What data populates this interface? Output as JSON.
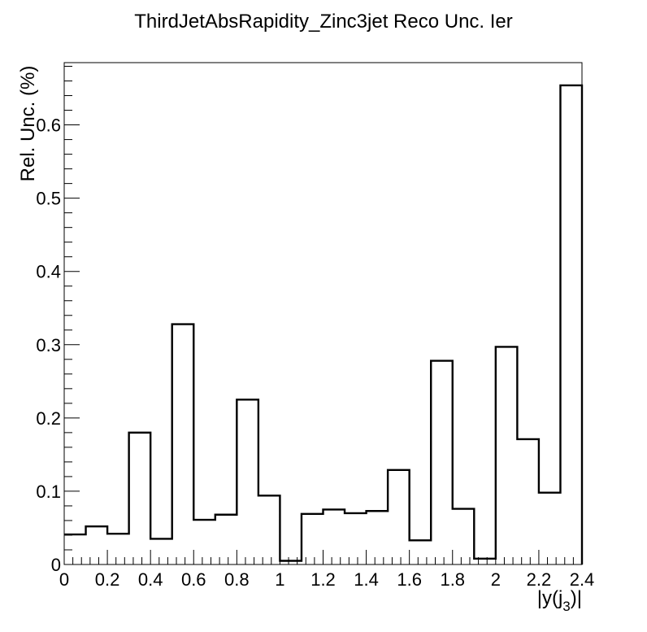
{
  "chart_data": {
    "type": "histogram",
    "title": "ThirdJetAbsRapidity_Zinc3jet Reco Unc. Ier",
    "xlabel": "|y(j",
    "xlabel_subscript": "3",
    "xlabel_suffix": ")|",
    "ylabel": "Rel. Unc. (%)",
    "xlim": [
      0,
      2.4
    ],
    "ylim": [
      0,
      0.685
    ],
    "grid": false,
    "x_ticks": [
      0,
      0.2,
      0.4,
      0.6,
      0.8,
      1.0,
      1.2,
      1.4,
      1.6,
      1.8,
      2.0,
      2.2,
      2.4
    ],
    "x_tick_labels": [
      "0",
      "0.2",
      "0.4",
      "0.6",
      "0.8",
      "1",
      "1.2",
      "1.4",
      "1.6",
      "1.8",
      "2",
      "2.2",
      "2.4"
    ],
    "y_ticks": [
      0,
      0.1,
      0.2,
      0.3,
      0.4,
      0.5,
      0.6
    ],
    "y_tick_labels": [
      "0",
      "0.1",
      "0.2",
      "0.3",
      "0.4",
      "0.5",
      "0.6"
    ],
    "bin_edges": [
      0,
      0.1,
      0.2,
      0.3,
      0.4,
      0.5,
      0.6,
      0.7,
      0.8,
      0.9,
      1.0,
      1.1,
      1.2,
      1.3,
      1.4,
      1.5,
      1.6,
      1.7,
      1.8,
      1.9,
      2.0,
      2.1,
      2.2,
      2.3,
      2.4
    ],
    "values": [
      0.041,
      0.052,
      0.042,
      0.18,
      0.035,
      0.328,
      0.061,
      0.068,
      0.225,
      0.094,
      0.005,
      0.069,
      0.075,
      0.07,
      0.073,
      0.129,
      0.033,
      0.278,
      0.076,
      0.008,
      0.297,
      0.171,
      0.098,
      0.654
    ],
    "line_color": "#000000"
  }
}
